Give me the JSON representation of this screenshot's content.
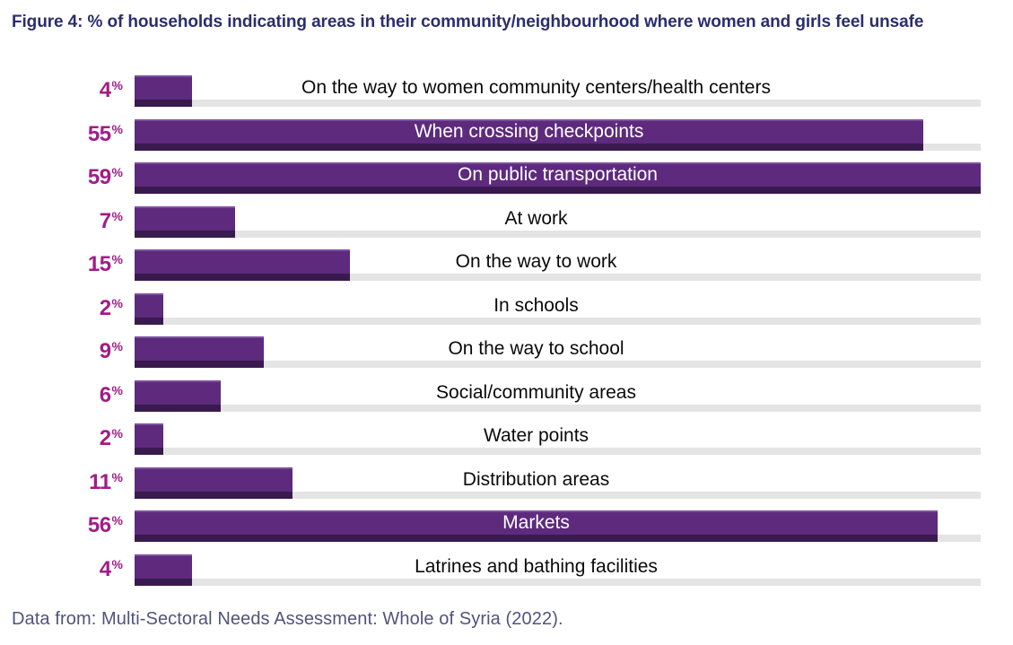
{
  "header": {
    "title": "Figure 4: % of households indicating areas in their community/neighbourhood where women and girls feel unsafe"
  },
  "footer": {
    "source": "Data from: Multi-Sectoral Needs Assessment: Whole of Syria (2022)."
  },
  "colors": {
    "title_text": "#2b2e6c",
    "value_text": "#a21c87",
    "bar_fill": "#5d2a7d",
    "bar_top_highlight": "#7d4f9d",
    "bar_bottom_shadow": "#391a4e",
    "track_fill": "#e4e4e4",
    "category_text": "#0a0a0a",
    "category_text_on_bar": "#ffffff",
    "source_text": "#50547c",
    "background": "#ffffff"
  },
  "chart_data": {
    "type": "bar",
    "orientation": "horizontal",
    "title": "Figure 4: % of households indicating areas in their community/neighbourhood where women and girls feel unsafe",
    "unit": "%",
    "value_suffix": "%",
    "xlim": [
      0,
      59
    ],
    "grid": false,
    "legend": false,
    "categories": [
      "On the way to women community centers/health centers",
      "When crossing checkpoints",
      "On public transportation",
      "At work",
      "On the way to work",
      "In schools",
      "On the way to school",
      "Social/community areas",
      "Water points",
      "Distribution areas",
      "Markets",
      "Latrines and bathing facilities"
    ],
    "values": [
      4,
      55,
      59,
      7,
      15,
      2,
      9,
      6,
      2,
      11,
      56,
      4
    ],
    "label_inside_threshold": 50,
    "source": "Data from: Multi-Sectoral Needs Assessment: Whole of Syria (2022)."
  }
}
